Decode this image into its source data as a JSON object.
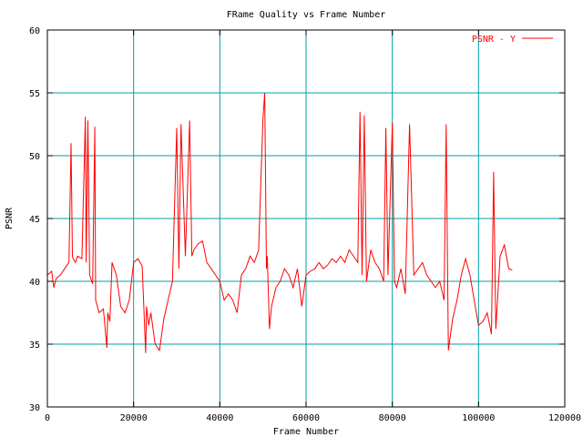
{
  "chart_data": {
    "type": "line",
    "title": "FRame Quality vs Frame Number",
    "xlabel": "Frame Number",
    "ylabel": "PSNR",
    "xlim": [
      0,
      120000
    ],
    "ylim": [
      30,
      60
    ],
    "x_ticks": [
      "0",
      "20000",
      "40000",
      "60000",
      "80000",
      "100000",
      "120000"
    ],
    "y_ticks": [
      "30",
      "35",
      "40",
      "45",
      "50",
      "55",
      "60"
    ],
    "grid": true,
    "legend_position": "top-right",
    "series": [
      {
        "name": "PSNR - Y",
        "color": "#ff0000",
        "x": [
          0,
          1000,
          1500,
          2000,
          3000,
          4000,
          5000,
          5500,
          5800,
          6000,
          6500,
          7000,
          8000,
          8800,
          9000,
          9400,
          9800,
          10500,
          11000,
          11200,
          12000,
          13000,
          13800,
          14000,
          14500,
          15000,
          16000,
          17000,
          18000,
          19000,
          20000,
          21000,
          22000,
          22800,
          23000,
          23500,
          24000,
          25000,
          26000,
          27000,
          28000,
          29000,
          30000,
          30500,
          31000,
          32000,
          33000,
          33500,
          34000,
          35000,
          36000,
          37000,
          38000,
          39000,
          40000,
          41000,
          42000,
          43000,
          44000,
          45000,
          46000,
          47000,
          48000,
          49000,
          50000,
          50400,
          50800,
          51000,
          51500,
          52000,
          53000,
          54000,
          55000,
          56000,
          57000,
          58000,
          59000,
          60000,
          61000,
          62000,
          63000,
          64000,
          65000,
          66000,
          67000,
          68000,
          69000,
          70000,
          71000,
          72000,
          72500,
          73000,
          73500,
          74000,
          75000,
          76000,
          77000,
          78000,
          78500,
          79000,
          80000,
          80500,
          81000,
          82000,
          83000,
          84000,
          85000,
          86000,
          87000,
          88000,
          89000,
          90000,
          91000,
          92000,
          92500,
          93000,
          94000,
          95000,
          96000,
          97000,
          98000,
          99000,
          100000,
          101000,
          102000,
          103000,
          103500,
          104000,
          105000,
          106000,
          107000,
          107800
        ],
        "y": [
          40.5,
          40.8,
          39.5,
          40.2,
          40.5,
          41.0,
          41.5,
          51.0,
          42.0,
          41.8,
          41.5,
          42.0,
          41.8,
          53.1,
          41.5,
          52.8,
          40.5,
          39.8,
          52.3,
          38.5,
          37.5,
          37.8,
          34.7,
          37.5,
          36.8,
          41.5,
          40.5,
          38.0,
          37.5,
          38.5,
          41.5,
          41.8,
          41.2,
          34.3,
          38.0,
          36.5,
          37.5,
          35.0,
          34.5,
          37.0,
          38.5,
          40.0,
          52.2,
          41.0,
          52.5,
          42.0,
          52.8,
          42.0,
          42.5,
          43.0,
          43.2,
          41.5,
          41.0,
          40.5,
          40.0,
          38.5,
          39.0,
          38.5,
          37.5,
          40.5,
          41.0,
          42.0,
          41.5,
          42.5,
          53.0,
          55.0,
          41.0,
          42.0,
          36.2,
          38.0,
          39.5,
          40.0,
          41.0,
          40.5,
          39.5,
          41.0,
          38.0,
          40.5,
          40.8,
          41.0,
          41.5,
          41.0,
          41.3,
          41.8,
          41.5,
          42.0,
          41.5,
          42.5,
          42.0,
          41.5,
          53.5,
          40.5,
          53.2,
          40.0,
          42.5,
          41.5,
          41.0,
          40.0,
          52.2,
          40.5,
          52.6,
          40.0,
          39.5,
          41.0,
          39.0,
          52.5,
          40.5,
          41.0,
          41.5,
          40.5,
          40.0,
          39.5,
          40.0,
          38.5,
          52.5,
          34.5,
          37.0,
          38.5,
          40.5,
          41.8,
          40.5,
          38.5,
          36.5,
          36.8,
          37.5,
          35.8,
          48.7,
          36.2,
          42.0,
          42.9,
          41.0,
          40.9
        ]
      }
    ]
  }
}
